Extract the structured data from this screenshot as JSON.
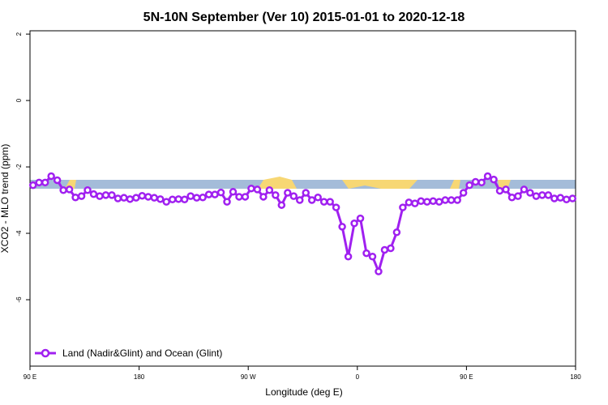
{
  "chart_data": {
    "type": "line",
    "title": "5N-10N September (Ver 10)   2015-01-01 to 2020-12-18",
    "x_label": "Longitude (deg E)",
    "y_label": "XCO2 - MLO trend (ppm)",
    "xlim": [
      90,
      540
    ],
    "ylim": [
      -8,
      2.1
    ],
    "xticks": [
      {
        "value": 90,
        "label": "90 E"
      },
      180,
      {
        "value": 270,
        "label": "90 W"
      },
      {
        "value": 360,
        "label": "0"
      },
      {
        "value": 450,
        "label": "90 E"
      },
      {
        "value": 540,
        "label": "180"
      }
    ],
    "yticks": [
      -6,
      -4,
      -2,
      0,
      2
    ],
    "legend_position": "bottomleft",
    "x": [
      92.5,
      97.5,
      102.5,
      107.5,
      112.5,
      117.5,
      122.5,
      127.5,
      132.5,
      137.5,
      142.5,
      147.5,
      152.5,
      157.5,
      162.5,
      167.5,
      172.5,
      177.5,
      182.5,
      187.5,
      192.5,
      197.5,
      202.5,
      207.5,
      212.5,
      217.5,
      222.5,
      227.5,
      232.5,
      237.5,
      242.5,
      247.5,
      252.5,
      257.5,
      262.5,
      267.5,
      272.5,
      277.5,
      282.5,
      287.5,
      292.5,
      297.5,
      302.5,
      307.5,
      312.5,
      317.5,
      322.5,
      327.5,
      332.5,
      337.5,
      342.5,
      347.5,
      352.5,
      357.5,
      362.5,
      367.5,
      372.5,
      377.5,
      382.5,
      387.5,
      392.5,
      397.5,
      402.5,
      407.5,
      412.5,
      417.5,
      422.5,
      427.5,
      432.5,
      437.5,
      442.5,
      447.5,
      452.5,
      457.5,
      462.5,
      467.5,
      472.5,
      477.5,
      482.5,
      487.5,
      492.5,
      497.5,
      502.5,
      507.5,
      512.5,
      517.5,
      522.5,
      527.5,
      532.5,
      537.5
    ],
    "series": [
      {
        "name": "Land (Nadir&Glint) and Ocean (Glint)",
        "color": "#a020f0",
        "values": [
          -2.55,
          -2.47,
          -2.47,
          -2.28,
          -2.4,
          -2.7,
          -2.68,
          -2.92,
          -2.88,
          -2.7,
          -2.82,
          -2.88,
          -2.85,
          -2.85,
          -2.95,
          -2.93,
          -2.97,
          -2.93,
          -2.87,
          -2.9,
          -2.93,
          -2.97,
          -3.05,
          -2.98,
          -2.97,
          -2.98,
          -2.88,
          -2.93,
          -2.92,
          -2.83,
          -2.83,
          -2.77,
          -3.05,
          -2.75,
          -2.9,
          -2.9,
          -2.65,
          -2.68,
          -2.9,
          -2.7,
          -2.85,
          -3.15,
          -2.78,
          -2.88,
          -3.0,
          -2.78,
          -3.0,
          -2.92,
          -3.05,
          -3.05,
          -3.22,
          -3.8,
          -4.7,
          -3.7,
          -3.55,
          -4.6,
          -4.7,
          -5.15,
          -4.5,
          -4.45,
          -3.97,
          -3.22,
          -3.07,
          -3.1,
          -3.03,
          -3.05,
          -3.03,
          -3.05,
          -3.0,
          -3.0,
          -3.0,
          -2.78,
          -2.55,
          -2.45,
          -2.47,
          -2.28,
          -2.38,
          -2.72,
          -2.68,
          -2.92,
          -2.88,
          -2.68,
          -2.78,
          -2.88,
          -2.85,
          -2.85,
          -2.95,
          -2.93,
          -2.98,
          -2.95
        ]
      }
    ]
  }
}
